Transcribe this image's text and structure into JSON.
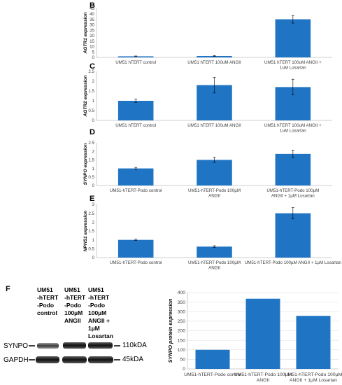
{
  "panels": [
    {
      "letter": "B"
    },
    {
      "letter": "C"
    },
    {
      "letter": "D"
    },
    {
      "letter": "E"
    },
    {
      "letter": "F"
    }
  ],
  "colors": {
    "bar": "#1f74c4",
    "axis": "#bfbfbf",
    "grid": "#d9d9d9",
    "text": "#404040"
  },
  "chart_data": [
    {
      "type": "bar",
      "ylabel": "AGTR1 expression",
      "categories": [
        "UM51 hTERT control",
        "UM51 hTERT 100uM ANGII",
        "UM51 hTERT 100uM ANGII +\n1uM Losartan"
      ],
      "values": [
        1.0,
        1.3,
        35.0
      ],
      "errors": [
        0.3,
        0.4,
        3.5
      ],
      "ylim": [
        0,
        45
      ],
      "yticks": [
        0,
        5,
        10,
        15,
        20,
        25,
        30,
        35,
        40,
        45
      ],
      "grid": false
    },
    {
      "type": "bar",
      "ylabel": "AGTR2 expression",
      "categories": [
        "UM51 hTERT control",
        "UM51 hTERT 100uM ANGII",
        "UM51 hTERT 100uM ANGII +\n1uM Losartan"
      ],
      "values": [
        1.0,
        1.8,
        1.7
      ],
      "errors": [
        0.08,
        0.4,
        0.4
      ],
      "ylim": [
        0,
        2.5
      ],
      "yticks": [
        0,
        0.5,
        1,
        1.5,
        2,
        2.5
      ],
      "grid": false
    },
    {
      "type": "bar",
      "ylabel": "SYNPO expression",
      "categories": [
        "UM51-hTERT-Podo control",
        "UM51-hTERT-Podo 100µM\nANGII",
        "UM51-hTERT-Podo 100µM\nANGII + 1µM Losartan"
      ],
      "values": [
        1.0,
        1.5,
        1.85
      ],
      "errors": [
        0.06,
        0.15,
        0.22
      ],
      "ylim": [
        0,
        2.5
      ],
      "yticks": [
        0,
        0.5,
        1,
        1.5,
        2,
        2.5
      ],
      "grid": false
    },
    {
      "type": "bar",
      "ylabel": "NPHS1 expression",
      "categories": [
        "UM51-hTERT-Podo control",
        "UM51-hTERT-Podo 100µM\nANGII",
        "UM51-hTERT-Podo 100µM ANGII + 1µM Losartan"
      ],
      "values": [
        1.0,
        0.62,
        2.5
      ],
      "errors": [
        0.04,
        0.05,
        0.32
      ],
      "ylim": [
        0,
        3
      ],
      "yticks": [
        0,
        0.5,
        1,
        1.5,
        2,
        2.5,
        3
      ],
      "grid": false
    },
    {
      "type": "bar",
      "ylabel": "SYNPO protein expression",
      "categories": [
        "UM51-hTERT-Podo control",
        "UM51-hTERT-Podo 100µM\nANGII",
        "UM51-hTERT-Podo 100µM\nANGII + 1µM Losartan"
      ],
      "values": [
        100,
        368,
        278
      ],
      "ylim": [
        0,
        400
      ],
      "yticks": [
        0,
        50,
        100,
        150,
        200,
        250,
        300,
        350,
        400
      ],
      "grid": true
    }
  ],
  "blot": {
    "lanes": [
      "UM51\n-hTERT\n-Podo\ncontrol",
      "UM51\n-hTERT\n-Podo\n100µM\nANGII",
      "UM51\n-hTERT\n-Podo\n100µM\nANGII +\n1µM\nLosartan"
    ],
    "rows": [
      {
        "protein": "SYNPO",
        "size": "110kDA"
      },
      {
        "protein": "GAPDH",
        "size": "45kDA"
      }
    ]
  }
}
